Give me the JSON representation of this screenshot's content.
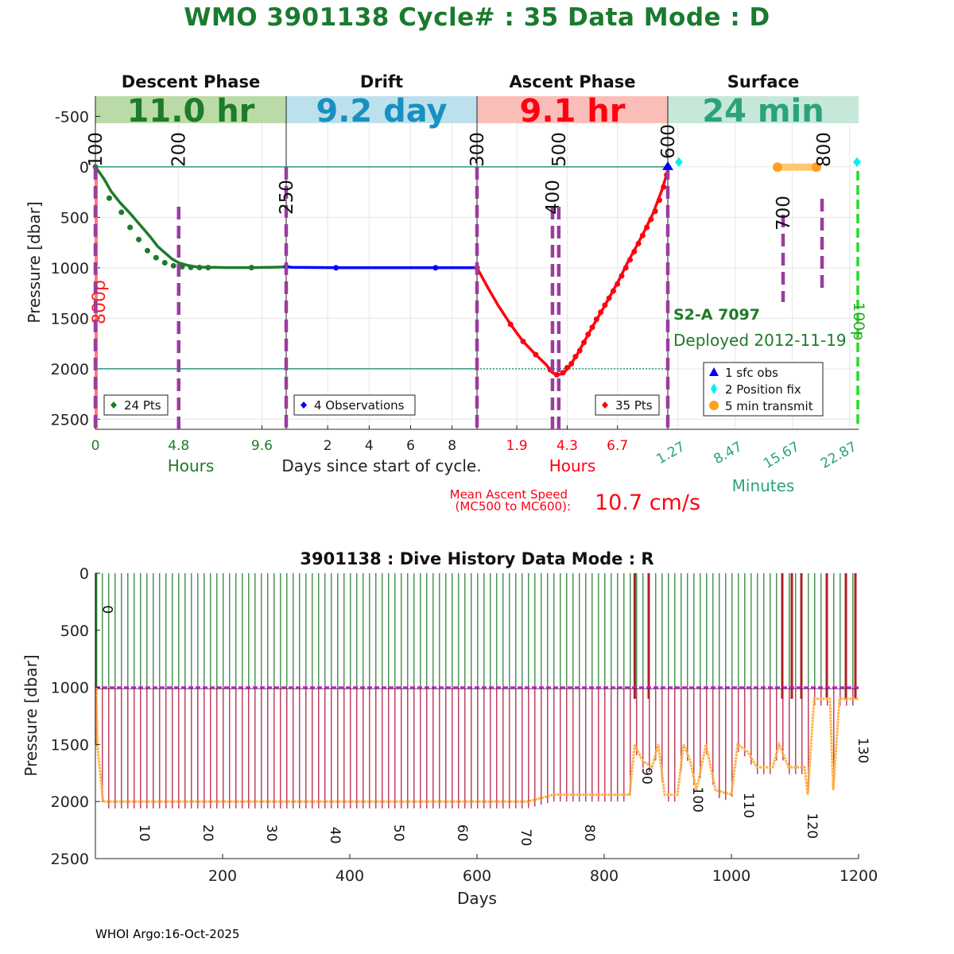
{
  "title": "WMO 3901138   Cycle# : 35   Data Mode : D",
  "footer": "WHOI Argo:16-Oct-2025",
  "colors": {
    "title": "#1a7a2e",
    "descent": "#1e7b2a",
    "drift": "#0000ff",
    "ascent": "#ff0010",
    "surface": "#2aa37c",
    "mc_line": "#9b3c9e",
    "teal": "#2a9a7a",
    "pink": "#ff7a7a",
    "orange": "#ffa020",
    "magenta": "#dd00dd",
    "lime": "#22dd22"
  },
  "cycle_chart": {
    "ylabel": "Pressure [dbar]",
    "ylim": [
      -700,
      2600
    ],
    "yticks": [
      -500,
      0,
      500,
      1000,
      1500,
      2000,
      2500
    ],
    "phases": [
      {
        "key": "descent",
        "name": "Descent Phase",
        "duration": "11.0 hr",
        "bg": "#badba8",
        "fg": "#1e7b2a"
      },
      {
        "key": "drift",
        "name": "Drift",
        "duration": "9.2 day",
        "bg": "#bde0ed",
        "fg": "#1890c0"
      },
      {
        "key": "ascent",
        "name": "Ascent Phase",
        "duration": "9.1 hr",
        "bg": "#fbbdb8",
        "fg": "#ff0010"
      },
      {
        "key": "surface",
        "name": "Surface",
        "duration": "24 min",
        "bg": "#c5e8d8",
        "fg": "#2aa37c"
      }
    ],
    "descent": {
      "xlim": [
        0,
        11.0
      ],
      "xticks": [
        0,
        4.8,
        9.6
      ],
      "xlabel": "Hours",
      "legend": "24 Pts",
      "points": [
        [
          0,
          0
        ],
        [
          0.5,
          120
        ],
        [
          0.9,
          240
        ],
        [
          1.4,
          350
        ],
        [
          2.0,
          460
        ],
        [
          2.6,
          580
        ],
        [
          3.2,
          700
        ],
        [
          3.6,
          790
        ],
        [
          4.0,
          850
        ],
        [
          4.4,
          910
        ],
        [
          4.8,
          950
        ],
        [
          5.3,
          975
        ],
        [
          5.8,
          990
        ],
        [
          6.4,
          995
        ],
        [
          6.9,
          996
        ],
        [
          7.5,
          998
        ],
        [
          9.0,
          998
        ],
        [
          10.4,
          994
        ],
        [
          11.0,
          990
        ]
      ],
      "markers": [
        [
          0,
          0
        ],
        [
          0.8,
          310
        ],
        [
          1.5,
          450
        ],
        [
          2.0,
          600
        ],
        [
          2.5,
          720
        ],
        [
          3.0,
          830
        ],
        [
          3.5,
          900
        ],
        [
          4.0,
          950
        ],
        [
          4.5,
          980
        ],
        [
          5.0,
          990
        ],
        [
          5.5,
          995
        ],
        [
          6.0,
          997
        ],
        [
          6.5,
          998
        ],
        [
          9.0,
          998
        ],
        [
          11.0,
          990
        ]
      ],
      "mc_labels": [
        {
          "x": 0,
          "label": "100"
        },
        {
          "x": 4.8,
          "label": "200"
        }
      ]
    },
    "drift": {
      "xlim": [
        0,
        9.2
      ],
      "xticks": [
        2,
        4,
        6,
        8
      ],
      "xlabel": "Days since start of cycle.",
      "legend": "4 Observations",
      "points": [
        [
          0,
          990
        ],
        [
          0.3,
          995
        ],
        [
          2.6,
          1000
        ],
        [
          4.6,
          1000
        ],
        [
          7.2,
          1000
        ],
        [
          9.2,
          1000
        ]
      ],
      "markers": [
        [
          0,
          990
        ],
        [
          2.4,
          1000
        ],
        [
          7.2,
          1000
        ],
        [
          9.2,
          1000
        ]
      ],
      "mc_labels": [
        {
          "x": 0,
          "label": "250"
        }
      ]
    },
    "ascent": {
      "xlim": [
        0,
        9.1
      ],
      "xticks": [
        1.9,
        4.3,
        6.7
      ],
      "xlabel": "Hours",
      "legend": "35 Pts",
      "points": [
        [
          0,
          1000
        ],
        [
          0.5,
          1190
        ],
        [
          1.0,
          1370
        ],
        [
          1.6,
          1560
        ],
        [
          2.2,
          1730
        ],
        [
          2.8,
          1860
        ],
        [
          3.3,
          1960
        ],
        [
          3.6,
          2040
        ],
        [
          3.8,
          2060
        ],
        [
          4.1,
          2050
        ],
        [
          4.4,
          1980
        ],
        [
          4.8,
          1850
        ],
        [
          5.2,
          1700
        ],
        [
          5.6,
          1550
        ],
        [
          6.0,
          1410
        ],
        [
          6.4,
          1260
        ],
        [
          6.8,
          1110
        ],
        [
          7.2,
          940
        ],
        [
          7.6,
          790
        ],
        [
          8.0,
          630
        ],
        [
          8.4,
          460
        ],
        [
          8.8,
          240
        ],
        [
          9.1,
          40
        ]
      ],
      "markers": [
        [
          0,
          1000
        ],
        [
          1.6,
          1560
        ],
        [
          2.2,
          1730
        ],
        [
          2.8,
          1860
        ],
        [
          3.5,
          2010
        ],
        [
          3.8,
          2060
        ],
        [
          4.1,
          2040
        ],
        [
          4.3,
          1990
        ],
        [
          4.5,
          1950
        ],
        [
          4.7,
          1880
        ],
        [
          4.9,
          1820
        ],
        [
          5.1,
          1740
        ],
        [
          5.3,
          1660
        ],
        [
          5.5,
          1590
        ],
        [
          5.7,
          1510
        ],
        [
          5.9,
          1440
        ],
        [
          6.1,
          1370
        ],
        [
          6.3,
          1300
        ],
        [
          6.5,
          1230
        ],
        [
          6.7,
          1160
        ],
        [
          6.9,
          1080
        ],
        [
          7.1,
          1000
        ],
        [
          7.3,
          920
        ],
        [
          7.5,
          840
        ],
        [
          7.7,
          760
        ],
        [
          7.9,
          680
        ],
        [
          8.1,
          600
        ],
        [
          8.3,
          520
        ],
        [
          8.5,
          440
        ],
        [
          8.7,
          330
        ],
        [
          8.9,
          200
        ],
        [
          9.05,
          80
        ]
      ],
      "mc_labels": [
        {
          "x": 0,
          "label": "300"
        },
        {
          "x": 3.6,
          "label": "400"
        },
        {
          "x": 3.9,
          "label": "500"
        },
        {
          "x": 9.1,
          "label": "600"
        }
      ],
      "mean_ascent_label_line1": "Mean Ascent Speed",
      "mean_ascent_label_line2": "(MC500 to MC600):",
      "mean_ascent_value": "10.7 cm/s"
    },
    "surface": {
      "xlim": [
        0,
        24
      ],
      "xticks": [
        "1.27",
        "8.47",
        "15.67",
        "22.87"
      ],
      "xtick_values": [
        1.27,
        8.47,
        15.67,
        22.87
      ],
      "xlabel": "Minutes",
      "sfc_obs": [
        [
          0,
          0
        ]
      ],
      "position_fix": [
        [
          1.6,
          -50
        ],
        [
          24,
          -50
        ]
      ],
      "transmit": [
        [
          15.0,
          50
        ],
        [
          19.9,
          50
        ]
      ],
      "mc_labels": [
        {
          "x": 15.0,
          "label": "700"
        },
        {
          "x": 19.9,
          "label": "800"
        }
      ],
      "green_dashed_label": "100p",
      "float_label": "S2-A 7097",
      "deployed_label": "Deployed 2012-11-19",
      "legend": [
        "1 sfc obs",
        "2 Position fix",
        "5 min transmit"
      ]
    },
    "left_marker_label": "800p"
  },
  "history_chart": {
    "title": "3901138 : Dive History      Data Mode : R",
    "ylabel": "Pressure [dbar]",
    "xlabel": "Days",
    "xlim": [
      0,
      1200
    ],
    "ylim": [
      0,
      2500
    ],
    "xticks": [
      200,
      400,
      600,
      800,
      1000,
      1200
    ],
    "yticks": [
      0,
      500,
      1000,
      1500,
      2000,
      2500
    ],
    "cycle_labels": [
      {
        "label": "0",
        "x": 2,
        "y": 280
      },
      {
        "label": "10",
        "x": 60,
        "y": 2200
      },
      {
        "label": "20",
        "x": 160,
        "y": 2200
      },
      {
        "label": "30",
        "x": 260,
        "y": 2200
      },
      {
        "label": "40",
        "x": 360,
        "y": 2220
      },
      {
        "label": "50",
        "x": 460,
        "y": 2200
      },
      {
        "label": "60",
        "x": 560,
        "y": 2200
      },
      {
        "label": "70",
        "x": 660,
        "y": 2240
      },
      {
        "label": "80",
        "x": 760,
        "y": 2200
      },
      {
        "label": "90",
        "x": 850,
        "y": 1700
      },
      {
        "label": "100",
        "x": 930,
        "y": 1870
      },
      {
        "label": "110",
        "x": 1010,
        "y": 1920
      },
      {
        "label": "120",
        "x": 1110,
        "y": 2100
      },
      {
        "label": "130",
        "x": 1190,
        "y": 1440
      }
    ],
    "park_pressure": 1000,
    "profile_depths": [
      [
        1,
        1000
      ],
      [
        3,
        1500
      ],
      [
        12,
        2000
      ],
      [
        680,
        2000
      ],
      [
        720,
        1940
      ],
      [
        840,
        1940
      ],
      [
        848,
        1500
      ],
      [
        860,
        1640
      ],
      [
        875,
        1700
      ],
      [
        885,
        1500
      ],
      [
        895,
        1940
      ],
      [
        915,
        1940
      ],
      [
        925,
        1500
      ],
      [
        935,
        1640
      ],
      [
        945,
        1900
      ],
      [
        960,
        1500
      ],
      [
        975,
        1900
      ],
      [
        1000,
        1940
      ],
      [
        1010,
        1500
      ],
      [
        1025,
        1560
      ],
      [
        1040,
        1700
      ],
      [
        1065,
        1700
      ],
      [
        1075,
        1500
      ],
      [
        1090,
        1700
      ],
      [
        1115,
        1700
      ],
      [
        1120,
        1940
      ],
      [
        1130,
        1100
      ],
      [
        1155,
        1100
      ],
      [
        1160,
        1900
      ],
      [
        1170,
        1100
      ],
      [
        1200,
        1100
      ]
    ],
    "profile_spacing_days": 10,
    "profile_start_day": 1,
    "profile_end_day": 1200,
    "ascent_highlight_days": [
      848,
      870,
      1080,
      1095,
      1110,
      1150,
      1180,
      1195
    ]
  }
}
